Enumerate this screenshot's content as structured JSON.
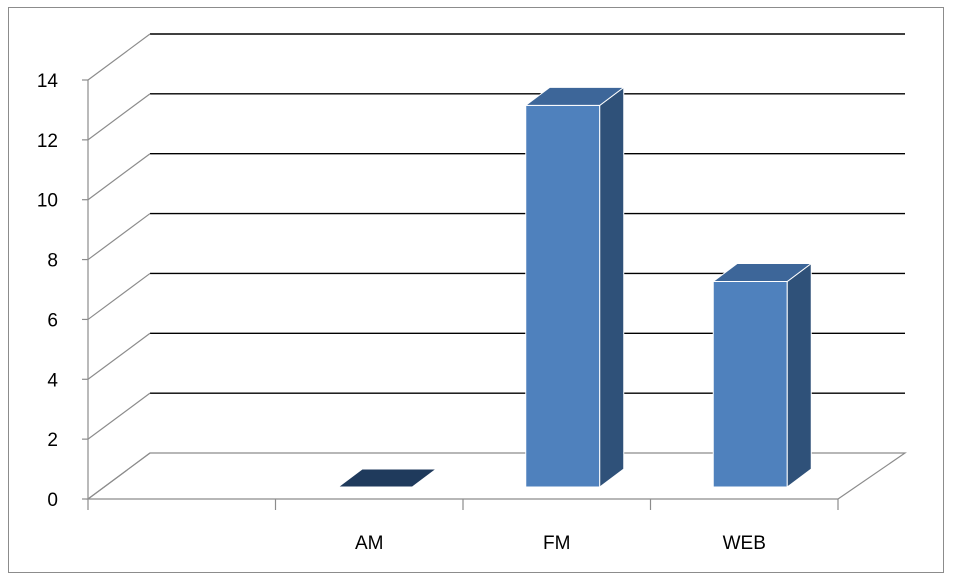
{
  "chart_data": {
    "type": "bar",
    "title": "",
    "xlabel": "",
    "ylabel": "",
    "categories": [
      "",
      "AM",
      "FM",
      "WEB"
    ],
    "series": [
      {
        "values": [
          null,
          0,
          13,
          7
        ]
      }
    ],
    "ylim": [
      0,
      14
    ],
    "yticks": [
      0,
      2,
      4,
      6,
      8,
      10,
      12,
      14
    ],
    "grid": true,
    "legend": "none",
    "style": "3d-column",
    "colors": {
      "bar_front": "#4f81bd",
      "bar_side": "#2f5179",
      "bar_top": "#3d6699",
      "bar_flat": "#1f3a5c",
      "grid": "#000000",
      "axis": "#8c8c8c"
    }
  }
}
